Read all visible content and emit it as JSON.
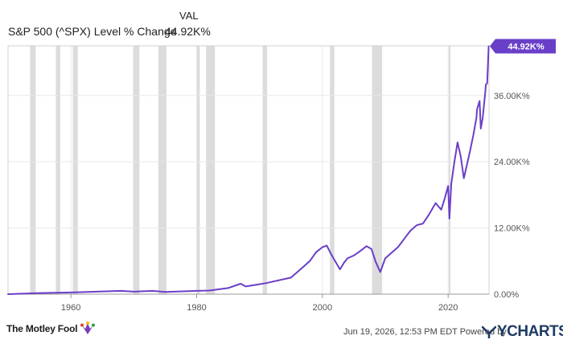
{
  "legend": {
    "column_header": "VAL",
    "series_name": "S&P 500 (^SPX) Level % Change",
    "series_value": "44.92K%"
  },
  "colors": {
    "line": "#6a3fc8",
    "recession_band": "#dcdcdc",
    "grid": "#e8e8e8",
    "axis": "#999999"
  },
  "chart_data": {
    "type": "line",
    "title": "",
    "xlabel": "",
    "ylabel": "",
    "xlim": [
      1950.0,
      2026.5
    ],
    "ylim": [
      0,
      45000
    ],
    "x_ticks": [
      1960,
      1980,
      2000,
      2020
    ],
    "x_tick_labels": [
      "1960",
      "1980",
      "2000",
      "2020"
    ],
    "y_ticks": [
      0,
      12000,
      24000,
      36000
    ],
    "y_tick_labels": [
      "0.00%",
      "12.00K%",
      "24.00K%",
      "36.00K%"
    ],
    "grid": true,
    "recessions": [
      [
        1953.5,
        1954.4
      ],
      [
        1957.6,
        1958.3
      ],
      [
        1960.3,
        1961.1
      ],
      [
        1969.9,
        1970.9
      ],
      [
        1973.9,
        1975.2
      ],
      [
        1980.0,
        1980.5
      ],
      [
        1981.5,
        1982.9
      ],
      [
        1990.5,
        1991.2
      ],
      [
        2001.2,
        2001.9
      ],
      [
        2007.9,
        2009.5
      ],
      [
        2020.1,
        2020.3
      ]
    ],
    "series": [
      {
        "name": "S&P 500 (^SPX) Level % Change",
        "last_value_label": "44.92K%",
        "x": [
          1950,
          1955,
          1960,
          1965,
          1968,
          1970,
          1973,
          1975,
          1980,
          1982,
          1985,
          1987,
          1987.8,
          1990,
          1991,
          1995,
          1997,
          1998,
          1999,
          2000,
          2000.7,
          2001.5,
          2002.8,
          2003.5,
          2004,
          2005,
          2006,
          2007,
          2007.8,
          2008.5,
          2009.2,
          2010,
          2011,
          2012,
          2013,
          2014,
          2015,
          2016,
          2017,
          2018,
          2018.9,
          2019.5,
          2020.0,
          2020.2,
          2020.5,
          2021,
          2021.5,
          2022.0,
          2022.5,
          2022.8,
          2023.5,
          2024.0,
          2024.5,
          2024.6,
          2025.0,
          2025.2,
          2025.5,
          2025.9,
          2026.0,
          2026.2,
          2026.35,
          2026.45
        ],
        "y": [
          0,
          200,
          300,
          500,
          600,
          450,
          600,
          400,
          600,
          650,
          1100,
          1900,
          1400,
          1800,
          2000,
          3000,
          5000,
          6000,
          7600,
          8500,
          8800,
          7000,
          4500,
          5800,
          6500,
          7000,
          7800,
          8700,
          8200,
          5800,
          4000,
          6500,
          7500,
          8500,
          10000,
          11500,
          12500,
          12800,
          14500,
          16500,
          15300,
          17500,
          19600,
          13700,
          20000,
          24000,
          27500,
          25000,
          21000,
          22500,
          26000,
          28800,
          32000,
          33500,
          35000,
          30000,
          32000,
          36500,
          38000,
          38200,
          42000,
          44920
        ]
      }
    ]
  },
  "footer": {
    "timestamp": "Jun 19, 2026, 12:53 PM EDT  Powered by",
    "left_brand": "The Motley Fool",
    "right_brand": "YCHARTS"
  },
  "icons": {
    "jester": "jester-hat-icon",
    "ycharts": "ycharts-logo-icon"
  }
}
